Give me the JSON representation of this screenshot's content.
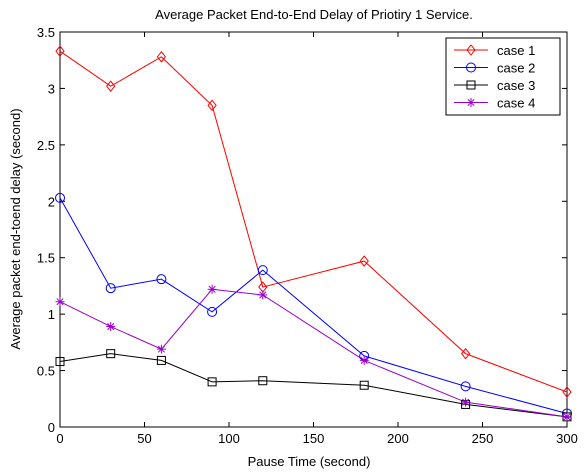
{
  "chart_data": {
    "type": "line",
    "title": "Average Packet End-to-End Delay of Priotiry 1 Service.",
    "xlabel": "Pause Time (second)",
    "ylabel": "Average packet end-toend delay (second)",
    "xlim": [
      0,
      300
    ],
    "ylim": [
      0,
      3.5
    ],
    "xticks": [
      0,
      50,
      100,
      150,
      200,
      250,
      300
    ],
    "yticks": [
      0,
      0.5,
      1,
      1.5,
      2,
      2.5,
      3,
      3.5
    ],
    "xtick_labels": [
      "0",
      "50",
      "100",
      "150",
      "200",
      "250",
      "300"
    ],
    "ytick_labels": [
      "0",
      "0.5",
      "1",
      "1.5",
      "2",
      "2.5",
      "3",
      "3.5"
    ],
    "grid": false,
    "legend_position": "top-right",
    "x": [
      0,
      30,
      60,
      90,
      120,
      180,
      240,
      300
    ],
    "series": [
      {
        "name": "case 1",
        "color": "#ff0000",
        "marker": "diamond",
        "values": [
          3.33,
          3.02,
          3.28,
          2.85,
          1.24,
          1.47,
          0.65,
          0.31
        ]
      },
      {
        "name": "case 2",
        "color": "#0000ff",
        "marker": "circle",
        "values": [
          2.03,
          1.23,
          1.31,
          1.02,
          1.39,
          0.63,
          0.36,
          0.12
        ]
      },
      {
        "name": "case 3",
        "color": "#000000",
        "marker": "square",
        "values": [
          0.58,
          0.65,
          0.59,
          0.4,
          0.41,
          0.37,
          0.2,
          0.09
        ]
      },
      {
        "name": "case 4",
        "color": "#9900cc",
        "marker": "asterisk",
        "values": [
          1.11,
          0.89,
          0.69,
          1.22,
          1.17,
          0.59,
          0.22,
          0.09
        ]
      }
    ]
  }
}
